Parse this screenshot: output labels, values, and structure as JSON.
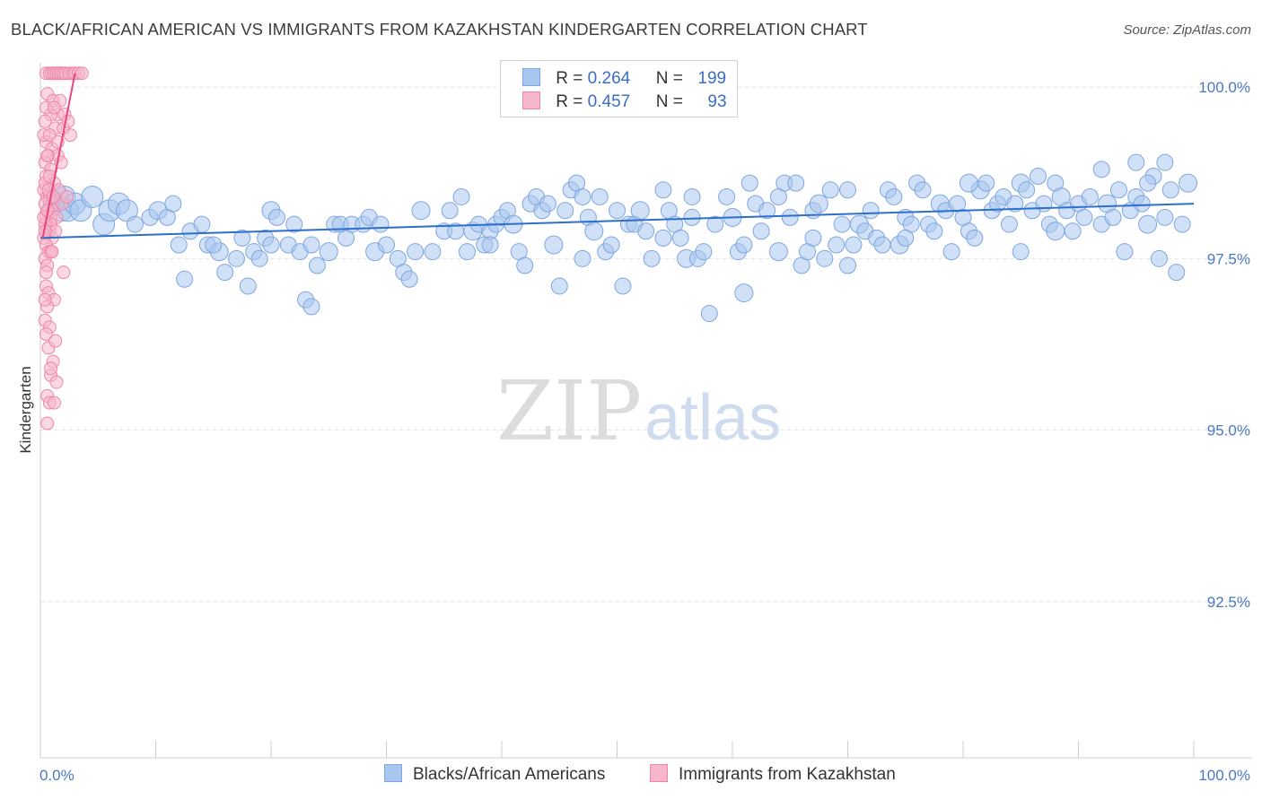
{
  "header": {
    "title": "BLACK/AFRICAN AMERICAN VS IMMIGRANTS FROM KAZAKHSTAN KINDERGARTEN CORRELATION CHART",
    "source": "Source: ZipAtlas.com"
  },
  "legend": {
    "series1": {
      "r_label": "R = ",
      "r_value": "0.264",
      "n_label": "N = ",
      "n_value": "199"
    },
    "series2": {
      "r_label": "R = ",
      "r_value": "0.457",
      "n_label": "N = ",
      "n_value": "93"
    }
  },
  "bottom_legend": {
    "series1_label": "Blacks/African Americans",
    "series2_label": "Immigrants from Kazakhstan"
  },
  "watermark": {
    "zip": "ZIP",
    "atlas": "atlas"
  },
  "colors": {
    "blue_fill": "#a9c6ef",
    "blue_stroke": "#7ea6e0",
    "blue_line": "#2d6fcc",
    "pink_fill": "#f6b6cb",
    "pink_stroke": "#ef86a8",
    "pink_line": "#e8457c",
    "tick_text": "#4a78c4",
    "grid": "#e4e4e4"
  },
  "chart_data": {
    "type": "scatter",
    "title": "BLACK/AFRICAN AMERICAN VS IMMIGRANTS FROM KAZAKHSTAN KINDERGARTEN CORRELATION CHART",
    "xlabel": "",
    "ylabel": "Kindergarten",
    "xlim": [
      0,
      100
    ],
    "ylim": [
      90.0,
      100.4
    ],
    "x_tick_labels": [
      "0.0%",
      "100.0%"
    ],
    "y_ticks": [
      92.5,
      95.0,
      97.5,
      100.0
    ],
    "y_tick_labels": [
      "92.5%",
      "95.0%",
      "97.5%",
      "100.0%"
    ],
    "grid": "horizontal-dashed",
    "series": [
      {
        "name": "Blacks/African Americans",
        "R": 0.264,
        "N": 199,
        "trend": {
          "x0": 0,
          "y0": 97.8,
          "x1": 100,
          "y1": 98.3
        },
        "points": [
          [
            1.2,
            98.3
          ],
          [
            1.5,
            98.4
          ],
          [
            1.8,
            98.2
          ],
          [
            2.1,
            98.4
          ],
          [
            2.4,
            98.2
          ],
          [
            3.0,
            98.3
          ],
          [
            3.5,
            98.2
          ],
          [
            4.5,
            98.4
          ],
          [
            5.5,
            98.0
          ],
          [
            6.0,
            98.2
          ],
          [
            6.8,
            98.3
          ],
          [
            7.5,
            98.2
          ],
          [
            8.2,
            98.0
          ],
          [
            9.5,
            98.1
          ],
          [
            10.2,
            98.2
          ],
          [
            11.0,
            98.1
          ],
          [
            11.5,
            98.3
          ],
          [
            12.0,
            97.7
          ],
          [
            13.0,
            97.9
          ],
          [
            14.0,
            98.0
          ],
          [
            14.5,
            97.7
          ],
          [
            15.5,
            97.6
          ],
          [
            16.0,
            97.3
          ],
          [
            17.0,
            97.5
          ],
          [
            17.5,
            97.8
          ],
          [
            18.5,
            97.6
          ],
          [
            19.0,
            97.5
          ],
          [
            19.5,
            97.8
          ],
          [
            20.0,
            98.2
          ],
          [
            20.5,
            98.1
          ],
          [
            21.5,
            97.7
          ],
          [
            22.0,
            98.0
          ],
          [
            22.5,
            97.6
          ],
          [
            23.5,
            97.7
          ],
          [
            24.0,
            97.4
          ],
          [
            25.0,
            97.6
          ],
          [
            25.5,
            98.0
          ],
          [
            26.0,
            98.0
          ],
          [
            26.5,
            97.8
          ],
          [
            27.0,
            98.0
          ],
          [
            28.0,
            98.0
          ],
          [
            28.5,
            98.1
          ],
          [
            29.0,
            97.6
          ],
          [
            29.5,
            98.0
          ],
          [
            30.0,
            97.7
          ],
          [
            31.0,
            97.5
          ],
          [
            31.5,
            97.3
          ],
          [
            32.0,
            97.2
          ],
          [
            32.5,
            97.6
          ],
          [
            33.0,
            98.2
          ],
          [
            34.0,
            97.6
          ],
          [
            35.0,
            97.9
          ],
          [
            35.5,
            98.2
          ],
          [
            36.0,
            97.9
          ],
          [
            36.5,
            98.4
          ],
          [
            37.0,
            97.6
          ],
          [
            37.5,
            97.9
          ],
          [
            38.0,
            98.0
          ],
          [
            38.5,
            97.7
          ],
          [
            39.0,
            97.9
          ],
          [
            39.5,
            98.0
          ],
          [
            40.0,
            98.1
          ],
          [
            40.5,
            98.2
          ],
          [
            41.0,
            98.0
          ],
          [
            41.5,
            97.6
          ],
          [
            42.0,
            97.4
          ],
          [
            42.5,
            98.3
          ],
          [
            43.0,
            98.4
          ],
          [
            43.5,
            98.2
          ],
          [
            44.0,
            98.3
          ],
          [
            44.5,
            97.7
          ],
          [
            45.0,
            97.1
          ],
          [
            45.5,
            98.2
          ],
          [
            46.0,
            98.5
          ],
          [
            46.5,
            98.6
          ],
          [
            47.0,
            97.5
          ],
          [
            47.5,
            98.1
          ],
          [
            48.0,
            97.9
          ],
          [
            48.5,
            98.4
          ],
          [
            49.0,
            97.6
          ],
          [
            49.5,
            97.7
          ],
          [
            50.0,
            98.2
          ],
          [
            51.0,
            98.0
          ],
          [
            51.5,
            98.0
          ],
          [
            52.0,
            98.2
          ],
          [
            52.5,
            97.9
          ],
          [
            53.0,
            97.5
          ],
          [
            54.0,
            98.5
          ],
          [
            54.5,
            98.2
          ],
          [
            55.0,
            98.0
          ],
          [
            55.5,
            97.8
          ],
          [
            56.0,
            97.5
          ],
          [
            56.5,
            98.1
          ],
          [
            57.0,
            97.5
          ],
          [
            57.5,
            97.6
          ],
          [
            58.0,
            96.7
          ],
          [
            58.5,
            98.0
          ],
          [
            59.5,
            98.4
          ],
          [
            60.0,
            98.1
          ],
          [
            60.5,
            97.6
          ],
          [
            61.0,
            97.7
          ],
          [
            61.5,
            98.6
          ],
          [
            62.0,
            98.3
          ],
          [
            62.5,
            97.9
          ],
          [
            63.0,
            98.2
          ],
          [
            64.0,
            97.6
          ],
          [
            64.5,
            98.6
          ],
          [
            65.0,
            98.1
          ],
          [
            65.5,
            98.6
          ],
          [
            66.0,
            97.4
          ],
          [
            66.5,
            97.6
          ],
          [
            67.0,
            98.2
          ],
          [
            67.5,
            98.3
          ],
          [
            68.0,
            97.5
          ],
          [
            68.5,
            98.5
          ],
          [
            69.0,
            97.7
          ],
          [
            69.5,
            98.0
          ],
          [
            70.0,
            97.4
          ],
          [
            70.5,
            97.7
          ],
          [
            71.0,
            98.0
          ],
          [
            71.5,
            97.9
          ],
          [
            72.0,
            98.2
          ],
          [
            72.5,
            97.8
          ],
          [
            73.0,
            97.7
          ],
          [
            73.5,
            98.5
          ],
          [
            74.0,
            98.4
          ],
          [
            74.5,
            97.7
          ],
          [
            75.0,
            98.1
          ],
          [
            75.5,
            98.0
          ],
          [
            76.0,
            98.6
          ],
          [
            76.5,
            98.5
          ],
          [
            77.0,
            98.0
          ],
          [
            77.5,
            97.9
          ],
          [
            78.0,
            98.3
          ],
          [
            78.5,
            98.2
          ],
          [
            79.0,
            97.6
          ],
          [
            79.5,
            98.3
          ],
          [
            80.0,
            98.1
          ],
          [
            80.5,
            97.9
          ],
          [
            81.0,
            97.8
          ],
          [
            81.5,
            98.5
          ],
          [
            82.0,
            98.6
          ],
          [
            82.5,
            98.2
          ],
          [
            83.0,
            98.3
          ],
          [
            83.5,
            98.4
          ],
          [
            84.0,
            98.0
          ],
          [
            84.5,
            98.3
          ],
          [
            85.0,
            98.6
          ],
          [
            85.5,
            98.5
          ],
          [
            86.0,
            98.2
          ],
          [
            86.5,
            98.7
          ],
          [
            87.0,
            98.3
          ],
          [
            87.5,
            98.0
          ],
          [
            88.0,
            98.6
          ],
          [
            88.5,
            98.4
          ],
          [
            89.0,
            98.2
          ],
          [
            89.5,
            97.9
          ],
          [
            90.0,
            98.3
          ],
          [
            90.5,
            98.1
          ],
          [
            91.0,
            98.4
          ],
          [
            92.0,
            98.0
          ],
          [
            92.5,
            98.3
          ],
          [
            93.0,
            98.1
          ],
          [
            93.5,
            98.5
          ],
          [
            94.0,
            97.6
          ],
          [
            94.5,
            98.2
          ],
          [
            95.0,
            98.4
          ],
          [
            95.5,
            98.3
          ],
          [
            96.0,
            98.0
          ],
          [
            96.5,
            98.7
          ],
          [
            97.0,
            97.5
          ],
          [
            97.5,
            98.1
          ],
          [
            98.0,
            98.5
          ],
          [
            98.5,
            97.3
          ],
          [
            99.0,
            98.0
          ],
          [
            99.5,
            98.6
          ],
          [
            12.5,
            97.2
          ],
          [
            18.0,
            97.1
          ],
          [
            23.0,
            96.9
          ],
          [
            23.5,
            96.8
          ],
          [
            15.0,
            97.7
          ],
          [
            50.5,
            97.1
          ],
          [
            61.0,
            97.0
          ],
          [
            20.0,
            97.7
          ],
          [
            39.0,
            97.7
          ],
          [
            54.0,
            97.8
          ],
          [
            67.0,
            97.8
          ],
          [
            75.0,
            97.8
          ],
          [
            85.0,
            97.6
          ],
          [
            88.0,
            97.9
          ],
          [
            92.0,
            98.8
          ],
          [
            96.0,
            98.6
          ],
          [
            95.0,
            98.9
          ],
          [
            97.5,
            98.9
          ],
          [
            64.0,
            98.4
          ],
          [
            70.0,
            98.5
          ],
          [
            80.5,
            98.6
          ],
          [
            47.0,
            98.4
          ],
          [
            56.5,
            98.4
          ]
        ]
      },
      {
        "name": "Immigrants from Kazakhstan",
        "R": 0.457,
        "N": 93,
        "trend": {
          "x0": 0.2,
          "y0": 97.8,
          "x1": 3.0,
          "y1": 100.2
        },
        "points": [
          [
            0.5,
            100.2
          ],
          [
            0.8,
            100.2
          ],
          [
            1.0,
            100.2
          ],
          [
            1.2,
            100.2
          ],
          [
            1.4,
            100.2
          ],
          [
            1.6,
            100.2
          ],
          [
            1.8,
            100.2
          ],
          [
            2.0,
            100.2
          ],
          [
            2.2,
            100.2
          ],
          [
            2.5,
            100.2
          ],
          [
            2.8,
            100.2
          ],
          [
            3.0,
            100.2
          ],
          [
            3.3,
            100.2
          ],
          [
            3.6,
            100.2
          ],
          [
            0.6,
            99.9
          ],
          [
            1.1,
            99.8
          ],
          [
            1.5,
            99.6
          ],
          [
            0.9,
            99.6
          ],
          [
            0.4,
            99.5
          ],
          [
            1.3,
            99.4
          ],
          [
            2.0,
            99.4
          ],
          [
            2.6,
            99.3
          ],
          [
            0.5,
            99.2
          ],
          [
            1.0,
            99.1
          ],
          [
            0.7,
            99.0
          ],
          [
            1.5,
            99.0
          ],
          [
            0.4,
            98.9
          ],
          [
            0.9,
            98.8
          ],
          [
            0.5,
            98.7
          ],
          [
            1.2,
            98.6
          ],
          [
            0.3,
            98.5
          ],
          [
            0.6,
            98.4
          ],
          [
            0.8,
            98.4
          ],
          [
            1.0,
            98.3
          ],
          [
            0.4,
            98.3
          ],
          [
            0.7,
            98.2
          ],
          [
            1.1,
            98.2
          ],
          [
            0.5,
            98.1
          ],
          [
            0.9,
            98.1
          ],
          [
            1.4,
            98.1
          ],
          [
            0.4,
            98.0
          ],
          [
            0.6,
            97.9
          ],
          [
            0.8,
            97.9
          ],
          [
            1.0,
            97.8
          ],
          [
            0.3,
            97.8
          ],
          [
            0.5,
            97.7
          ],
          [
            0.7,
            97.6
          ],
          [
            0.9,
            97.6
          ],
          [
            0.4,
            97.5
          ],
          [
            0.6,
            97.4
          ],
          [
            2.0,
            97.3
          ],
          [
            0.5,
            97.1
          ],
          [
            0.7,
            97.0
          ],
          [
            1.2,
            96.9
          ],
          [
            0.6,
            96.8
          ],
          [
            0.4,
            96.6
          ],
          [
            0.8,
            96.5
          ],
          [
            0.7,
            96.2
          ],
          [
            1.1,
            96.0
          ],
          [
            0.9,
            95.8
          ],
          [
            1.4,
            95.7
          ],
          [
            0.6,
            95.5
          ],
          [
            0.8,
            95.4
          ],
          [
            1.2,
            95.4
          ],
          [
            0.6,
            95.1
          ],
          [
            0.4,
            98.6
          ],
          [
            1.6,
            98.5
          ],
          [
            1.9,
            98.3
          ],
          [
            2.3,
            98.4
          ],
          [
            0.5,
            99.7
          ],
          [
            1.7,
            99.8
          ],
          [
            2.1,
            99.6
          ],
          [
            0.3,
            99.3
          ],
          [
            0.6,
            99.0
          ],
          [
            1.8,
            98.9
          ],
          [
            0.7,
            98.5
          ],
          [
            0.9,
            98.0
          ],
          [
            0.3,
            98.1
          ],
          [
            1.3,
            97.9
          ],
          [
            0.5,
            97.3
          ],
          [
            0.4,
            96.9
          ],
          [
            1.0,
            97.6
          ],
          [
            0.8,
            99.3
          ],
          [
            1.5,
            99.2
          ],
          [
            2.4,
            99.5
          ],
          [
            1.2,
            99.7
          ],
          [
            0.6,
            98.2
          ],
          [
            0.4,
            97.9
          ],
          [
            0.8,
            98.7
          ],
          [
            1.1,
            98.4
          ],
          [
            0.5,
            96.4
          ],
          [
            0.9,
            95.9
          ],
          [
            1.3,
            96.3
          ]
        ]
      }
    ]
  }
}
